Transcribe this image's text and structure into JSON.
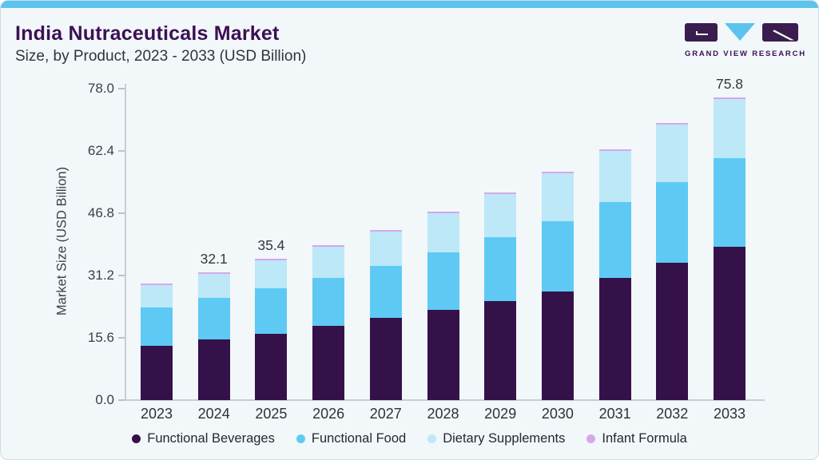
{
  "page": {
    "title": "India Nutraceuticals Market",
    "subtitle": "Size, by Product, 2023 - 2033 (USD Billion)",
    "logo_text": "GRAND VIEW RESEARCH"
  },
  "colors": {
    "accent_topbar": "#5cc3ee",
    "brand_purple": "#3c1053",
    "background": "#f2f7fa",
    "axis_text": "#3a4046",
    "axis_line": "#c6cdd5"
  },
  "chart_data": {
    "type": "bar",
    "stacked": true,
    "title": "India Nutraceuticals Market Size, by Product, 2023 - 2033 (USD Billion)",
    "xlabel": "",
    "ylabel": "Market Size (USD Billion)",
    "ylim": [
      0,
      78
    ],
    "yticks": [
      0.0,
      15.6,
      31.2,
      46.8,
      62.4,
      78.0
    ],
    "grid": false,
    "legend_position": "bottom",
    "categories": [
      "2023",
      "2024",
      "2025",
      "2026",
      "2027",
      "2028",
      "2029",
      "2030",
      "2031",
      "2032",
      "2033"
    ],
    "series": [
      {
        "name": "Functional Beverages",
        "color": "#35114a",
        "values": [
          13.7,
          15.2,
          16.7,
          18.6,
          20.6,
          22.6,
          24.8,
          27.3,
          30.7,
          34.5,
          38.4
        ]
      },
      {
        "name": "Functional Food",
        "color": "#5ecaf4",
        "values": [
          9.5,
          10.4,
          11.3,
          12.1,
          13.1,
          14.5,
          16.0,
          17.6,
          19.0,
          20.2,
          22.2
        ]
      },
      {
        "name": "Dietary Supplements",
        "color": "#bce8f8",
        "values": [
          5.6,
          6.1,
          7.0,
          7.7,
          8.5,
          9.7,
          10.9,
          11.9,
          12.7,
          14.3,
          14.8
        ]
      },
      {
        "name": "Infant Formula",
        "color": "#d7a7e8",
        "values": [
          0.4,
          0.4,
          0.4,
          0.4,
          0.4,
          0.4,
          0.4,
          0.4,
          0.4,
          0.5,
          0.4
        ]
      }
    ],
    "totals": [
      29.2,
      32.1,
      35.4,
      38.8,
      42.6,
      47.2,
      52.1,
      57.2,
      62.8,
      69.5,
      75.8
    ],
    "bar_labels": [
      "",
      "32.1",
      "35.4",
      "",
      "",
      "",
      "",
      "",
      "",
      "",
      "75.8"
    ]
  }
}
